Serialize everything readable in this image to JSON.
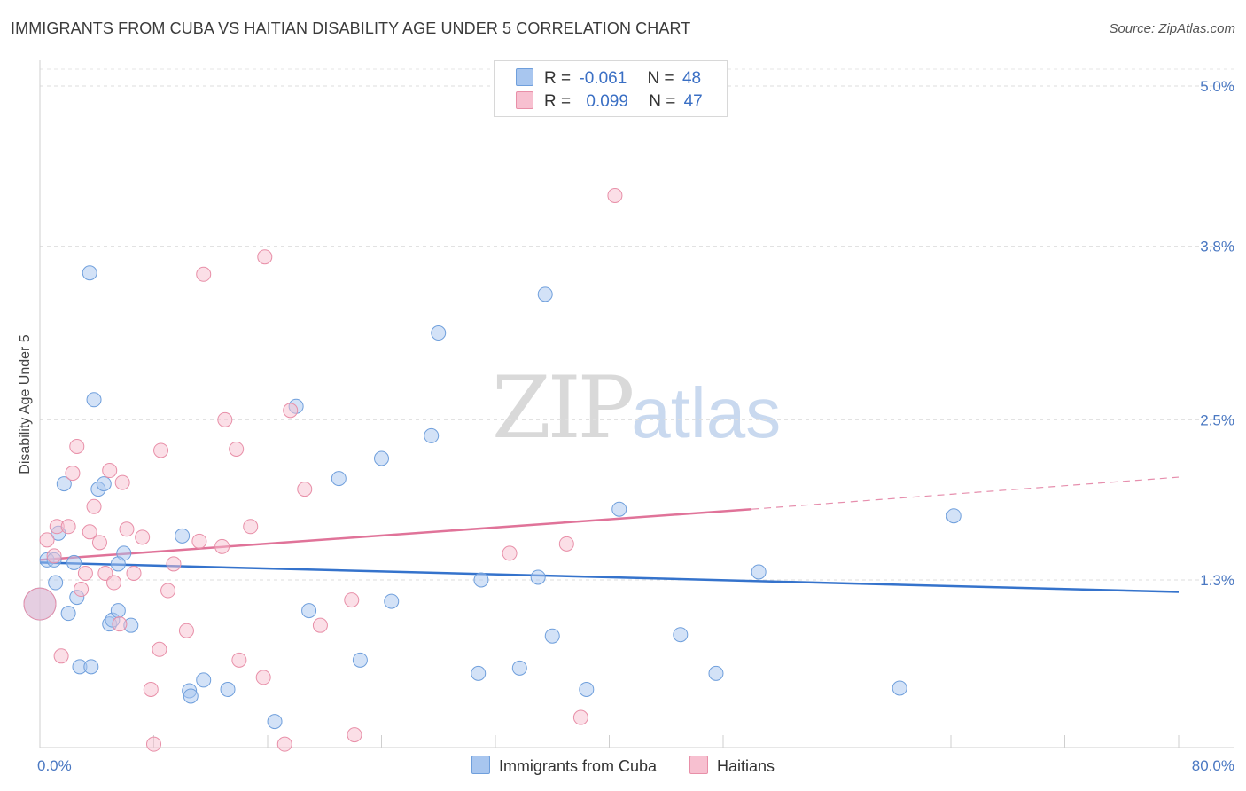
{
  "header": {
    "title": "IMMIGRANTS FROM CUBA VS HAITIAN DISABILITY AGE UNDER 5 CORRELATION CHART",
    "source": "Source: ZipAtlas.com"
  },
  "watermark": {
    "zip": "ZIP",
    "atlas": "atlas"
  },
  "legend": {
    "rows": [
      {
        "r_label": "R =",
        "r_value": "-0.061",
        "n_label": "N =",
        "n_value": "48",
        "color": "#a8c6ef",
        "border": "#6f9fdc"
      },
      {
        "r_label": "R =",
        "r_value": "0.099",
        "n_label": "N =",
        "n_value": "47",
        "color": "#f7c0d0",
        "border": "#e88fa8"
      }
    ]
  },
  "bottom_legend": {
    "items": [
      {
        "label": "Immigrants from Cuba",
        "color": "#a8c6ef",
        "border": "#6f9fdc"
      },
      {
        "label": "Haitians",
        "color": "#f7c0d0",
        "border": "#e88fa8"
      }
    ]
  },
  "chart_data": {
    "type": "scatter",
    "title": "IMMIGRANTS FROM CUBA VS HAITIAN DISABILITY AGE UNDER 5 CORRELATION CHART",
    "ylabel": "Disability Age Under 5",
    "xlabel": "",
    "xlim": [
      0,
      80
    ],
    "ylim": [
      0,
      5.2
    ],
    "x_ticks": [
      0,
      8,
      16,
      24,
      32,
      40,
      48,
      56,
      64,
      72,
      80
    ],
    "x_tick_labels": {
      "0": "0.0%",
      "80": "80.0%"
    },
    "y_ticks": [
      1.3,
      2.5,
      3.8,
      5.0
    ],
    "y_tick_labels": [
      "1.3%",
      "2.5%",
      "3.8%",
      "5.0%"
    ],
    "grid": {
      "horizontal": true,
      "vertical": false
    },
    "colors": {
      "cuba": "#6f9fdc",
      "cuba_fill": "#a8c6ef",
      "cuba_line": "#3573cc",
      "haiti": "#e88fa8",
      "haiti_fill": "#f7c0d0",
      "haiti_line": "#e07399"
    },
    "series": [
      {
        "name": "Immigrants from Cuba",
        "points": [
          [
            0.5,
            1.45
          ],
          [
            1.0,
            1.45
          ],
          [
            1.1,
            1.28
          ],
          [
            1.3,
            1.65
          ],
          [
            1.7,
            2.02
          ],
          [
            2.0,
            1.05
          ],
          [
            2.4,
            1.43
          ],
          [
            2.6,
            1.17
          ],
          [
            2.8,
            0.65
          ],
          [
            3.5,
            3.6
          ],
          [
            3.6,
            0.65
          ],
          [
            3.8,
            2.65
          ],
          [
            4.1,
            1.98
          ],
          [
            4.5,
            2.02
          ],
          [
            4.9,
            0.97
          ],
          [
            5.1,
            1.0
          ],
          [
            5.5,
            1.07
          ],
          [
            5.9,
            1.5
          ],
          [
            6.4,
            0.96
          ],
          [
            5.5,
            1.42
          ],
          [
            10.0,
            1.63
          ],
          [
            10.5,
            0.47
          ],
          [
            10.6,
            0.43
          ],
          [
            11.5,
            0.55
          ],
          [
            13.2,
            0.48
          ],
          [
            16.5,
            0.24
          ],
          [
            18.0,
            2.6
          ],
          [
            18.9,
            1.07
          ],
          [
            21.0,
            2.06
          ],
          [
            22.5,
            0.7
          ],
          [
            24.0,
            2.21
          ],
          [
            24.7,
            1.14
          ],
          [
            27.5,
            2.38
          ],
          [
            28.0,
            3.15
          ],
          [
            30.8,
            0.6
          ],
          [
            31.0,
            1.3
          ],
          [
            33.7,
            0.64
          ],
          [
            35.0,
            1.32
          ],
          [
            35.5,
            3.44
          ],
          [
            36.0,
            0.88
          ],
          [
            38.4,
            0.48
          ],
          [
            40.7,
            1.83
          ],
          [
            45.0,
            0.89
          ],
          [
            47.5,
            0.6
          ],
          [
            50.5,
            1.36
          ],
          [
            60.4,
            0.49
          ],
          [
            64.2,
            1.78
          ],
          [
            0.0,
            1.12
          ]
        ]
      },
      {
        "name": "Haitians",
        "points": [
          [
            0.5,
            1.6
          ],
          [
            1.0,
            1.48
          ],
          [
            1.2,
            1.7
          ],
          [
            1.5,
            0.73
          ],
          [
            2.0,
            1.7
          ],
          [
            2.3,
            2.1
          ],
          [
            2.6,
            2.3
          ],
          [
            2.9,
            1.23
          ],
          [
            3.2,
            1.35
          ],
          [
            3.5,
            1.66
          ],
          [
            3.8,
            1.85
          ],
          [
            4.2,
            1.58
          ],
          [
            4.6,
            1.35
          ],
          [
            4.9,
            2.12
          ],
          [
            5.2,
            1.28
          ],
          [
            5.6,
            0.97
          ],
          [
            5.8,
            2.03
          ],
          [
            6.1,
            1.68
          ],
          [
            6.6,
            1.35
          ],
          [
            7.2,
            1.62
          ],
          [
            7.8,
            0.48
          ],
          [
            8.0,
            0.07
          ],
          [
            8.4,
            0.78
          ],
          [
            8.5,
            2.27
          ],
          [
            9.0,
            1.22
          ],
          [
            9.4,
            1.42
          ],
          [
            10.3,
            0.92
          ],
          [
            11.2,
            1.59
          ],
          [
            11.5,
            3.59
          ],
          [
            12.8,
            1.55
          ],
          [
            13.0,
            2.5
          ],
          [
            13.8,
            2.28
          ],
          [
            14.0,
            0.7
          ],
          [
            14.8,
            1.7
          ],
          [
            15.7,
            0.57
          ],
          [
            15.8,
            3.72
          ],
          [
            17.2,
            0.07
          ],
          [
            17.6,
            2.57
          ],
          [
            18.6,
            1.98
          ],
          [
            19.7,
            0.96
          ],
          [
            21.9,
            1.15
          ],
          [
            22.1,
            0.14
          ],
          [
            33.0,
            1.5
          ],
          [
            37.0,
            1.57
          ],
          [
            38.0,
            0.27
          ],
          [
            40.4,
            4.18
          ],
          [
            0.0,
            1.12
          ]
        ]
      }
    ],
    "trendlines": [
      {
        "name": "Immigrants from Cuba",
        "x": [
          0,
          80
        ],
        "y": [
          1.43,
          1.21
        ]
      },
      {
        "name": "Haitians",
        "x": [
          0,
          50
        ],
        "y": [
          1.45,
          1.83
        ],
        "dashed_extension": {
          "x": [
            50,
            80
          ],
          "y": [
            1.83,
            2.07
          ]
        }
      }
    ]
  }
}
